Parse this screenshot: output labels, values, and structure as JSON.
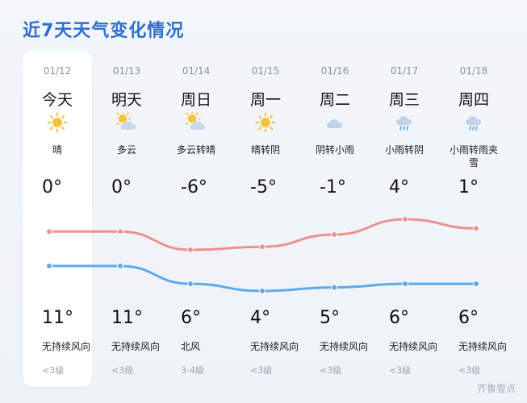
{
  "header": {
    "title": "近7天天气变化情况"
  },
  "days": [
    {
      "date": "01/12",
      "day": "今天",
      "icon": "sun-icon",
      "desc": "晴",
      "high": "0°",
      "low": "11°",
      "wind": "无持续风向",
      "level": "<3级",
      "today": true
    },
    {
      "date": "01/13",
      "day": "明天",
      "icon": "partly-cloudy-icon",
      "desc": "多云",
      "high": "0°",
      "low": "11°",
      "wind": "无持续风向",
      "level": "<3级"
    },
    {
      "date": "01/14",
      "day": "周日",
      "icon": "partly-cloudy-icon",
      "desc": "多云转晴",
      "high": "-6°",
      "low": "6°",
      "wind": "北风",
      "level": "3-4级"
    },
    {
      "date": "01/15",
      "day": "周一",
      "icon": "sun-icon",
      "desc": "晴转阴",
      "high": "-5°",
      "low": "4°",
      "wind": "无持续风向",
      "level": "<3级"
    },
    {
      "date": "01/16",
      "day": "周二",
      "icon": "cloud-icon",
      "desc": "阴转小雨",
      "high": "-1°",
      "low": "5°",
      "wind": "无持续风向",
      "level": "<3级"
    },
    {
      "date": "01/17",
      "day": "周三",
      "icon": "rain-icon",
      "desc": "小雨转阴",
      "high": "4°",
      "low": "6°",
      "wind": "无持续风向",
      "level": "<3级"
    },
    {
      "date": "01/18",
      "day": "周四",
      "icon": "rain-icon",
      "desc": "小雨转雨夹雪",
      "high": "1°",
      "low": "6°",
      "wind": "无持续风向",
      "level": "<3级"
    }
  ],
  "chart_data": {
    "type": "line",
    "categories": [
      "01/12",
      "01/13",
      "01/14",
      "01/15",
      "01/16",
      "01/17",
      "01/18"
    ],
    "series": [
      {
        "values": [
          0,
          0,
          -6,
          -5,
          -1,
          4,
          1
        ],
        "color": "#f0908f"
      },
      {
        "values": [
          11,
          11,
          6,
          4,
          5,
          6,
          6
        ],
        "color": "#5eaaea"
      }
    ]
  },
  "watermark": "齐鲁壹点"
}
